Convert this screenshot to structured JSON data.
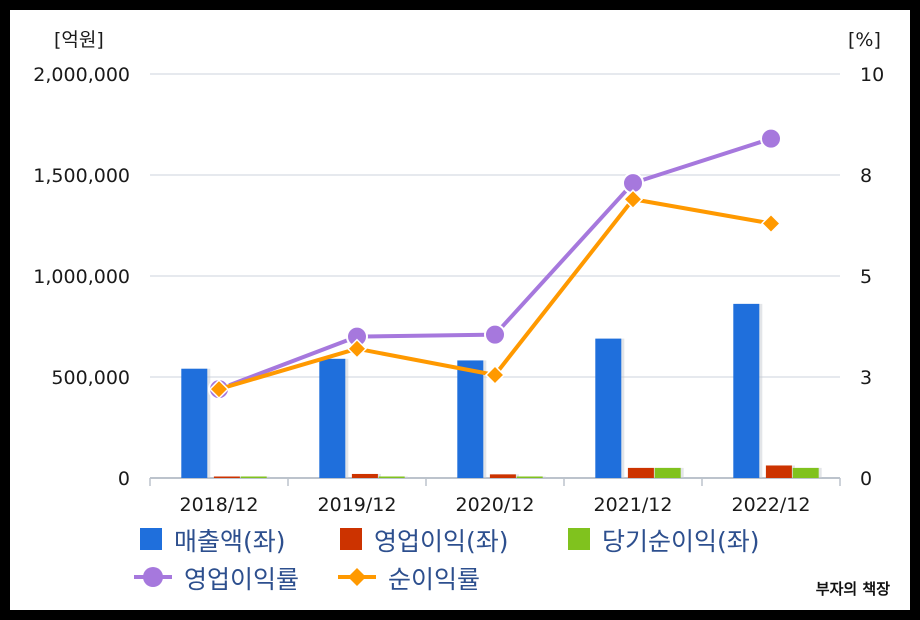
{
  "chart_data": {
    "type": "bar",
    "categories": [
      "2018/12",
      "2019/12",
      "2020/12",
      "2021/12",
      "2022/12"
    ],
    "y_left": {
      "unit": "[억원]",
      "ylim": [
        0,
        2000000
      ],
      "ticks": [
        "0",
        "500,000",
        "1,000,000",
        "1,500,000",
        "2,000,000"
      ]
    },
    "y_right": {
      "unit": "[%]",
      "ylim": [
        0,
        10
      ],
      "ticks": [
        "0",
        "3",
        "5",
        "8",
        "10"
      ]
    },
    "grid": true,
    "legend_position": "bottom",
    "series": [
      {
        "name": "매출액(좌)",
        "kind": "bar",
        "axis": "left",
        "color": "#1f6fdc",
        "values": [
          541000,
          590000,
          582000,
          690000,
          862000
        ]
      },
      {
        "name": "영업이익(좌)",
        "kind": "bar",
        "axis": "left",
        "color": "#cc3300",
        "values": [
          3000,
          20000,
          18000,
          50000,
          62000
        ]
      },
      {
        "name": "당기순이익(좌)",
        "kind": "bar",
        "axis": "left",
        "color": "#80c21e",
        "values": [
          5000,
          3000,
          2000,
          50000,
          50000
        ]
      },
      {
        "name": "영업이익률",
        "kind": "line",
        "axis": "right",
        "color": "#a678dd",
        "marker": "circle",
        "values": [
          2.2,
          3.5,
          3.55,
          7.3,
          8.4
        ]
      },
      {
        "name": "순이익률",
        "kind": "line",
        "axis": "right",
        "color": "#ff9900",
        "marker": "diamond",
        "values": [
          2.2,
          3.2,
          2.55,
          6.9,
          6.3
        ]
      }
    ]
  },
  "watermark": "부자의 책장"
}
